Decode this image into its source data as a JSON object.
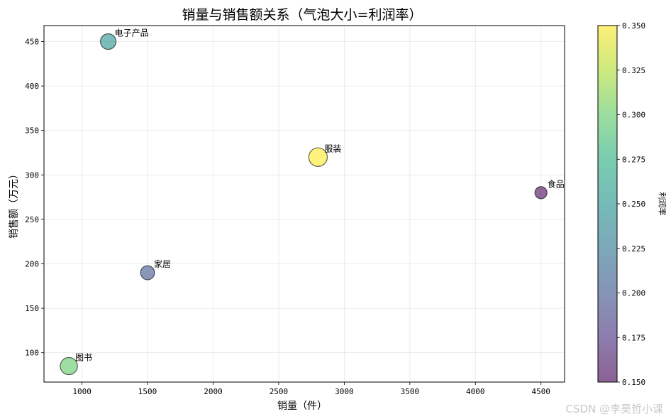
{
  "chart_data": {
    "type": "scatter",
    "title": "销量与销售额关系（气泡大小=利润率）",
    "xlabel": "销量（件）",
    "ylabel": "销售额（万元）",
    "xlim": [
      710,
      4680
    ],
    "ylim": [
      67,
      468
    ],
    "xticks": [
      1000,
      1500,
      2000,
      2500,
      3000,
      3500,
      4000,
      4500
    ],
    "yticks": [
      100,
      150,
      200,
      250,
      300,
      350,
      400,
      450
    ],
    "grid": true,
    "colorbar": {
      "label": "利润率",
      "range": [
        0.15,
        0.35
      ],
      "ticks": [
        "0.150",
        "0.175",
        "0.200",
        "0.225",
        "0.250",
        "0.275",
        "0.300",
        "0.325",
        "0.350"
      ],
      "colormap": "viridis"
    },
    "points": [
      {
        "label": "电子产品",
        "x": 1200,
        "y": 450,
        "profit_rate": 0.25
      },
      {
        "label": "服装",
        "x": 2800,
        "y": 320,
        "profit_rate": 0.35
      },
      {
        "label": "食品",
        "x": 4500,
        "y": 280,
        "profit_rate": 0.15
      },
      {
        "label": "家居",
        "x": 1500,
        "y": 190,
        "profit_rate": 0.2
      },
      {
        "label": "图书",
        "x": 900,
        "y": 85,
        "profit_rate": 0.3
      }
    ]
  },
  "watermark": "CSDN @李昊哲小课"
}
